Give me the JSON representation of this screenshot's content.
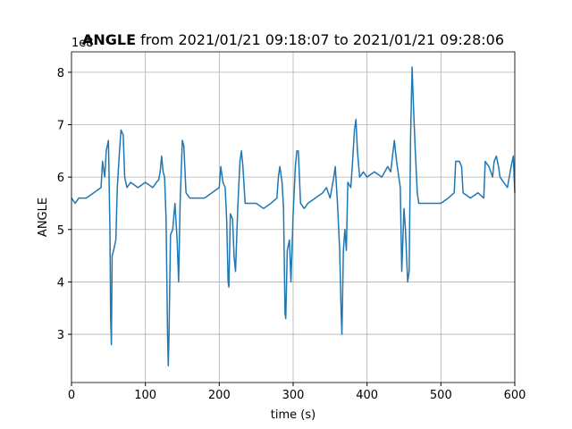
{
  "chart_data": {
    "type": "line",
    "title_bold": "ANGLE",
    "title": " from 2021/01/21 09:18:07 to 2021/01/21 09:28:06",
    "offset_label": "1e8",
    "xlabel": "time (s)",
    "ylabel": "ANGLE",
    "xlim": [
      0,
      600
    ],
    "ylim": [
      2.08,
      8.39
    ],
    "xticks": [
      0,
      100,
      200,
      300,
      400,
      500,
      600
    ],
    "yticks": [
      3,
      4,
      5,
      6,
      7,
      8
    ],
    "grid": true,
    "x": [
      0,
      5,
      10,
      20,
      30,
      40,
      42,
      45,
      47,
      50,
      52,
      53,
      54,
      55,
      57,
      60,
      62,
      65,
      67,
      70,
      72,
      75,
      80,
      90,
      100,
      110,
      115,
      118,
      120,
      122,
      124,
      126,
      128,
      130,
      131,
      132,
      134,
      137,
      140,
      143,
      145,
      147,
      150,
      152,
      155,
      160,
      170,
      180,
      190,
      200,
      202,
      205,
      208,
      210,
      212,
      213,
      215,
      218,
      220,
      222,
      225,
      228,
      230,
      232,
      235,
      240,
      250,
      260,
      270,
      278,
      280,
      282,
      285,
      287,
      289,
      290,
      292,
      295,
      297,
      300,
      303,
      305,
      307,
      310,
      315,
      320,
      330,
      340,
      345,
      350,
      355,
      357,
      360,
      363,
      365,
      366,
      368,
      370,
      372,
      374,
      378,
      380,
      383,
      385,
      387,
      390,
      395,
      400,
      410,
      420,
      428,
      432,
      437,
      440,
      445,
      447,
      450,
      452,
      455,
      457,
      459,
      461,
      463,
      465,
      468,
      470,
      480,
      490,
      500,
      510,
      518,
      520,
      525,
      528,
      530,
      540,
      550,
      558,
      560,
      565,
      570,
      572,
      575,
      578,
      580,
      590,
      595,
      598,
      600
    ],
    "series": [
      {
        "name": "ANGLE",
        "color": "#1f77b4",
        "values": [
          5.6,
          5.5,
          5.6,
          5.6,
          5.7,
          5.8,
          6.3,
          6.0,
          6.5,
          6.7,
          5.0,
          3.3,
          2.8,
          4.5,
          4.6,
          4.8,
          5.8,
          6.5,
          6.9,
          6.8,
          6.0,
          5.8,
          5.9,
          5.8,
          5.9,
          5.8,
          5.9,
          5.95,
          6.1,
          6.4,
          6.1,
          6.0,
          5.2,
          3.0,
          2.4,
          3.0,
          4.9,
          5.0,
          5.5,
          4.8,
          4.0,
          5.5,
          6.7,
          6.6,
          5.7,
          5.6,
          5.6,
          5.6,
          5.7,
          5.8,
          6.2,
          5.9,
          5.8,
          5.2,
          4.0,
          3.9,
          5.3,
          5.2,
          4.5,
          4.2,
          5.4,
          6.3,
          6.5,
          6.2,
          5.5,
          5.5,
          5.5,
          5.4,
          5.5,
          5.6,
          6.0,
          6.2,
          5.9,
          5.4,
          3.4,
          3.3,
          4.6,
          4.8,
          4.0,
          5.3,
          6.2,
          6.5,
          6.5,
          5.5,
          5.4,
          5.5,
          5.6,
          5.7,
          5.8,
          5.6,
          6.0,
          6.2,
          5.5,
          4.6,
          3.4,
          3.0,
          4.6,
          5.0,
          4.6,
          5.9,
          5.8,
          6.2,
          6.9,
          7.1,
          6.5,
          6.0,
          6.1,
          6.0,
          6.1,
          6.0,
          6.2,
          6.1,
          6.7,
          6.3,
          5.8,
          4.2,
          5.4,
          5.0,
          4.0,
          4.2,
          6.8,
          8.1,
          7.3,
          6.6,
          5.7,
          5.5,
          5.5,
          5.5,
          5.5,
          5.6,
          5.7,
          6.3,
          6.3,
          6.2,
          5.7,
          5.6,
          5.7,
          5.6,
          6.3,
          6.2,
          6.0,
          6.3,
          6.4,
          6.2,
          6.0,
          5.8,
          6.2,
          6.4,
          5.7
        ]
      }
    ]
  }
}
